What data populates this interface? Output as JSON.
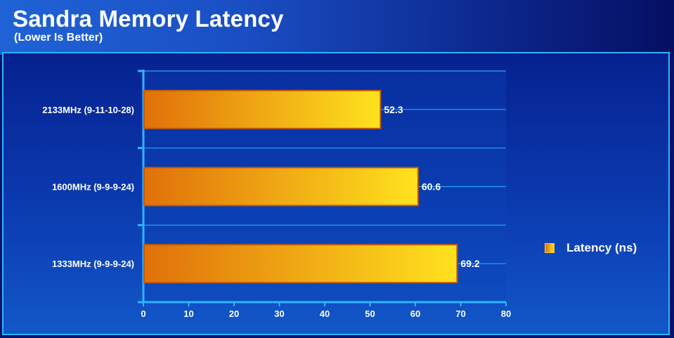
{
  "colors": {
    "bar_start": "#e0700a",
    "bar_end": "#ffe21e",
    "bar_border": "#c25a0a",
    "axis": "#2fb4ff",
    "grid": "#2aa6f0"
  },
  "legend": {
    "swatch_icon": "orange-square",
    "label": "Latency (ns)"
  },
  "chart_data": {
    "type": "bar",
    "orientation": "horizontal",
    "title": "Sandra Memory Latency",
    "subtitle": "(Lower Is Better)",
    "categories": [
      "2133MHz (9-11-10-28)",
      "1600MHz (9-9-9-24)",
      "1333MHz (9-9-9-24)"
    ],
    "series": [
      {
        "name": "Latency (ns)",
        "values": [
          52.3,
          60.6,
          69.2
        ]
      }
    ],
    "xlim": [
      0,
      80
    ],
    "xticks": [
      0,
      10,
      20,
      30,
      40,
      50,
      60,
      70,
      80
    ],
    "grid": true,
    "legend_position": "right"
  }
}
